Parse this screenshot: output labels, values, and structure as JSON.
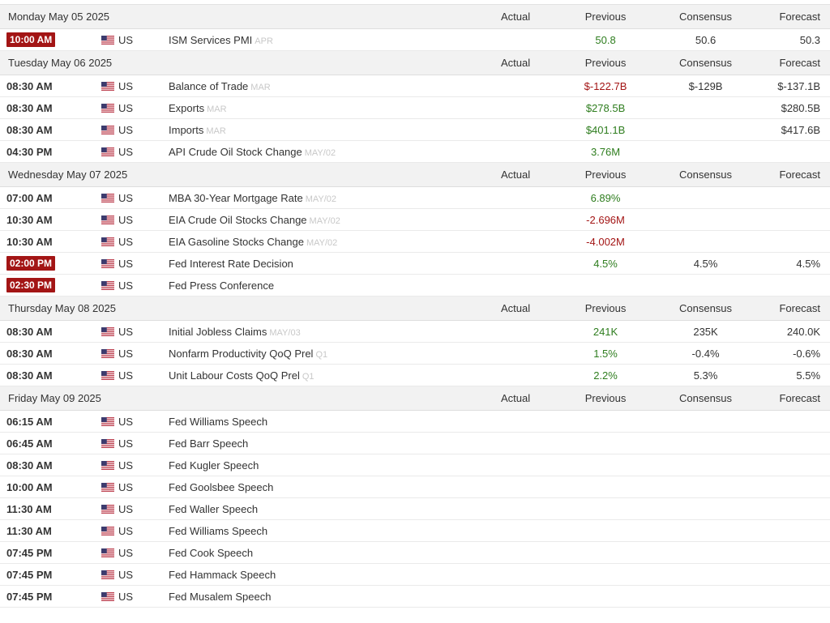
{
  "headers": {
    "actual": "Actual",
    "previous": "Previous",
    "consensus": "Consensus",
    "forecast": "Forecast"
  },
  "colors": {
    "badge": "#a31515",
    "positive": "#2e7d1e",
    "negative": "#a31515",
    "day_bg": "#f2f2f2"
  },
  "flag_icon": "us-flag-icon",
  "days": [
    {
      "date": "Monday May 05 2025",
      "events": [
        {
          "time": "10:00 AM",
          "highlight": true,
          "country": "US",
          "event": "ISM Services PMI",
          "ref": "APR",
          "actual": "",
          "previous": "50.8",
          "previous_tone": "pos",
          "consensus": "50.6",
          "forecast": "50.3"
        }
      ]
    },
    {
      "date": "Tuesday May 06 2025",
      "events": [
        {
          "time": "08:30 AM",
          "highlight": false,
          "country": "US",
          "event": "Balance of Trade",
          "ref": "MAR",
          "actual": "",
          "previous": "$-122.7B",
          "previous_tone": "neg",
          "consensus": "$-129B",
          "forecast": "$-137.1B"
        },
        {
          "time": "08:30 AM",
          "highlight": false,
          "country": "US",
          "event": "Exports",
          "ref": "MAR",
          "actual": "",
          "previous": "$278.5B",
          "previous_tone": "pos",
          "consensus": "",
          "forecast": "$280.5B"
        },
        {
          "time": "08:30 AM",
          "highlight": false,
          "country": "US",
          "event": "Imports",
          "ref": "MAR",
          "actual": "",
          "previous": "$401.1B",
          "previous_tone": "pos",
          "consensus": "",
          "forecast": "$417.6B"
        },
        {
          "time": "04:30 PM",
          "highlight": false,
          "country": "US",
          "event": "API Crude Oil Stock Change",
          "ref": "MAY/02",
          "actual": "",
          "previous": "3.76M",
          "previous_tone": "pos",
          "consensus": "",
          "forecast": ""
        }
      ]
    },
    {
      "date": "Wednesday May 07 2025",
      "events": [
        {
          "time": "07:00 AM",
          "highlight": false,
          "country": "US",
          "event": "MBA 30-Year Mortgage Rate",
          "ref": "MAY/02",
          "actual": "",
          "previous": "6.89%",
          "previous_tone": "pos",
          "consensus": "",
          "forecast": ""
        },
        {
          "time": "10:30 AM",
          "highlight": false,
          "country": "US",
          "event": "EIA Crude Oil Stocks Change",
          "ref": "MAY/02",
          "actual": "",
          "previous": "-2.696M",
          "previous_tone": "neg",
          "consensus": "",
          "forecast": ""
        },
        {
          "time": "10:30 AM",
          "highlight": false,
          "country": "US",
          "event": "EIA Gasoline Stocks Change",
          "ref": "MAY/02",
          "actual": "",
          "previous": "-4.002M",
          "previous_tone": "neg",
          "consensus": "",
          "forecast": ""
        },
        {
          "time": "02:00 PM",
          "highlight": true,
          "country": "US",
          "event": "Fed Interest Rate Decision",
          "ref": "",
          "actual": "",
          "previous": "4.5%",
          "previous_tone": "pos",
          "consensus": "4.5%",
          "forecast": "4.5%"
        },
        {
          "time": "02:30 PM",
          "highlight": true,
          "country": "US",
          "event": "Fed Press Conference",
          "ref": "",
          "actual": "",
          "previous": "",
          "previous_tone": "",
          "consensus": "",
          "forecast": ""
        }
      ]
    },
    {
      "date": "Thursday May 08 2025",
      "events": [
        {
          "time": "08:30 AM",
          "highlight": false,
          "country": "US",
          "event": "Initial Jobless Claims",
          "ref": "MAY/03",
          "actual": "",
          "previous": "241K",
          "previous_tone": "pos",
          "consensus": "235K",
          "forecast": "240.0K"
        },
        {
          "time": "08:30 AM",
          "highlight": false,
          "country": "US",
          "event": "Nonfarm Productivity QoQ Prel",
          "ref": "Q1",
          "actual": "",
          "previous": "1.5%",
          "previous_tone": "pos",
          "consensus": "-0.4%",
          "forecast": "-0.6%"
        },
        {
          "time": "08:30 AM",
          "highlight": false,
          "country": "US",
          "event": "Unit Labour Costs QoQ Prel",
          "ref": "Q1",
          "actual": "",
          "previous": "2.2%",
          "previous_tone": "pos",
          "consensus": "5.3%",
          "forecast": "5.5%"
        }
      ]
    },
    {
      "date": "Friday May 09 2025",
      "events": [
        {
          "time": "06:15 AM",
          "highlight": false,
          "country": "US",
          "event": "Fed Williams Speech",
          "ref": "",
          "actual": "",
          "previous": "",
          "previous_tone": "",
          "consensus": "",
          "forecast": ""
        },
        {
          "time": "06:45 AM",
          "highlight": false,
          "country": "US",
          "event": "Fed Barr Speech",
          "ref": "",
          "actual": "",
          "previous": "",
          "previous_tone": "",
          "consensus": "",
          "forecast": ""
        },
        {
          "time": "08:30 AM",
          "highlight": false,
          "country": "US",
          "event": "Fed Kugler Speech",
          "ref": "",
          "actual": "",
          "previous": "",
          "previous_tone": "",
          "consensus": "",
          "forecast": ""
        },
        {
          "time": "10:00 AM",
          "highlight": false,
          "country": "US",
          "event": "Fed Goolsbee Speech",
          "ref": "",
          "actual": "",
          "previous": "",
          "previous_tone": "",
          "consensus": "",
          "forecast": ""
        },
        {
          "time": "11:30 AM",
          "highlight": false,
          "country": "US",
          "event": "Fed Waller Speech",
          "ref": "",
          "actual": "",
          "previous": "",
          "previous_tone": "",
          "consensus": "",
          "forecast": ""
        },
        {
          "time": "11:30 AM",
          "highlight": false,
          "country": "US",
          "event": "Fed Williams Speech",
          "ref": "",
          "actual": "",
          "previous": "",
          "previous_tone": "",
          "consensus": "",
          "forecast": ""
        },
        {
          "time": "07:45 PM",
          "highlight": false,
          "country": "US",
          "event": "Fed Cook Speech",
          "ref": "",
          "actual": "",
          "previous": "",
          "previous_tone": "",
          "consensus": "",
          "forecast": ""
        },
        {
          "time": "07:45 PM",
          "highlight": false,
          "country": "US",
          "event": "Fed Hammack Speech",
          "ref": "",
          "actual": "",
          "previous": "",
          "previous_tone": "",
          "consensus": "",
          "forecast": ""
        },
        {
          "time": "07:45 PM",
          "highlight": false,
          "country": "US",
          "event": "Fed Musalem Speech",
          "ref": "",
          "actual": "",
          "previous": "",
          "previous_tone": "",
          "consensus": "",
          "forecast": ""
        }
      ]
    }
  ]
}
